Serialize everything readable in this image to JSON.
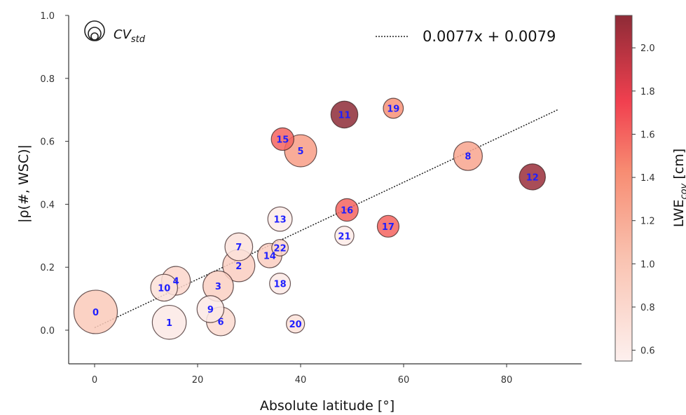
{
  "chart_data": {
    "type": "scatter",
    "xlabel": "Absolute latitude [°]",
    "ylabel": "|ρ(#, WSC)|",
    "xlim": [
      -5,
      95
    ],
    "ylim": [
      -0.12,
      1.0
    ],
    "x_ticks": [
      0,
      20,
      40,
      60,
      80
    ],
    "x_tick_labels": [
      "0",
      "20",
      "40",
      "60",
      "80"
    ],
    "y_ticks": [
      0.0,
      0.2,
      0.4,
      0.6,
      0.8,
      1.0
    ],
    "y_tick_labels": [
      "0.0",
      "0.2",
      "0.4",
      "0.6",
      "0.8",
      "1.0"
    ],
    "grid": false,
    "fit_line": {
      "label": "0.0077x + 0.0079",
      "slope": 0.0077,
      "intercept": 0.0079,
      "x_range": [
        0,
        90
      ],
      "style": "dotted"
    },
    "size_legend_label": "CV_std",
    "colorbar": {
      "label": "LWE_cov [cm]",
      "min": 0.55,
      "max": 2.15,
      "ticks": [
        0.6,
        0.8,
        1.0,
        1.2,
        1.4,
        1.6,
        1.8,
        2.0
      ],
      "tick_labels": [
        "0.6",
        "0.8",
        "1.0",
        "1.2",
        "1.4",
        "1.6",
        "1.8",
        "2.0"
      ],
      "color_low": "#fdf0ee",
      "color_high": "#8e2b37"
    },
    "points": [
      {
        "label": "0",
        "x": 0.2,
        "y": 0.058,
        "size": 1.0,
        "color_value": 0.95
      },
      {
        "label": "1",
        "x": 14.5,
        "y": 0.025,
        "size": 0.78,
        "color_value": 0.62
      },
      {
        "label": "2",
        "x": 28.0,
        "y": 0.205,
        "size": 0.74,
        "color_value": 0.9
      },
      {
        "label": "3",
        "x": 24.0,
        "y": 0.14,
        "size": 0.7,
        "color_value": 0.88
      },
      {
        "label": "4",
        "x": 15.8,
        "y": 0.157,
        "size": 0.66,
        "color_value": 0.82
      },
      {
        "label": "5",
        "x": 40.0,
        "y": 0.57,
        "size": 0.74,
        "color_value": 1.3
      },
      {
        "label": "6",
        "x": 24.5,
        "y": 0.028,
        "size": 0.66,
        "color_value": 0.78
      },
      {
        "label": "7",
        "x": 28.0,
        "y": 0.265,
        "size": 0.64,
        "color_value": 0.7
      },
      {
        "label": "8",
        "x": 72.5,
        "y": 0.553,
        "size": 0.66,
        "color_value": 1.25
      },
      {
        "label": "9",
        "x": 22.5,
        "y": 0.067,
        "size": 0.62,
        "color_value": 0.62
      },
      {
        "label": "10",
        "x": 13.5,
        "y": 0.135,
        "size": 0.62,
        "color_value": 0.72
      },
      {
        "label": "11",
        "x": 48.5,
        "y": 0.685,
        "size": 0.62,
        "color_value": 2.15
      },
      {
        "label": "12",
        "x": 85.0,
        "y": 0.487,
        "size": 0.6,
        "color_value": 2.1
      },
      {
        "label": "13",
        "x": 36.0,
        "y": 0.353,
        "size": 0.56,
        "color_value": 0.6
      },
      {
        "label": "14",
        "x": 34.0,
        "y": 0.237,
        "size": 0.56,
        "color_value": 0.9
      },
      {
        "label": "15",
        "x": 36.5,
        "y": 0.607,
        "size": 0.52,
        "color_value": 1.6
      },
      {
        "label": "16",
        "x": 49.0,
        "y": 0.382,
        "size": 0.52,
        "color_value": 1.6
      },
      {
        "label": "17",
        "x": 57.0,
        "y": 0.33,
        "size": 0.5,
        "color_value": 1.6
      },
      {
        "label": "18",
        "x": 36.0,
        "y": 0.148,
        "size": 0.48,
        "color_value": 0.62
      },
      {
        "label": "19",
        "x": 58.0,
        "y": 0.705,
        "size": 0.46,
        "color_value": 1.4
      },
      {
        "label": "20",
        "x": 39.0,
        "y": 0.02,
        "size": 0.42,
        "color_value": 0.72
      },
      {
        "label": "21",
        "x": 48.5,
        "y": 0.3,
        "size": 0.44,
        "color_value": 0.6
      },
      {
        "label": "22",
        "x": 36.0,
        "y": 0.262,
        "size": 0.38,
        "color_value": 0.82
      }
    ]
  }
}
